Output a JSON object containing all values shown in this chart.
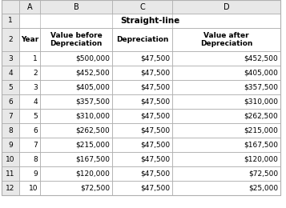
{
  "title": "Straight-line",
  "col_headers": [
    "",
    "A",
    "B",
    "C",
    "D"
  ],
  "header2": [
    "Year",
    "Value before\nDepreciation",
    "Depreciation",
    "Value after\nDepreciation"
  ],
  "years": [
    "1",
    "2",
    "3",
    "4",
    "5",
    "6",
    "7",
    "8",
    "9",
    "10"
  ],
  "value_before": [
    "$500,000",
    "$452,500",
    "$405,000",
    "$357,500",
    "$310,000",
    "$262,500",
    "$215,000",
    "$167,500",
    "$120,000",
    "$72,500"
  ],
  "depreciation": [
    "$47,500",
    "$47,500",
    "$47,500",
    "$47,500",
    "$47,500",
    "$47,500",
    "$47,500",
    "$47,500",
    "$47,500",
    "$47,500"
  ],
  "value_after": [
    "$452,500",
    "$405,000",
    "$357,500",
    "$310,000",
    "$262,500",
    "$215,000",
    "$167,500",
    "$120,000",
    "$72,500",
    "$25,000"
  ],
  "row_numbers": [
    "1",
    "2",
    "3",
    "4",
    "5",
    "6",
    "7",
    "8",
    "9",
    "10",
    "11",
    "12"
  ],
  "row_bg": "#ffffff",
  "grid_color": "#b0b0b0",
  "row_num_bg": "#e8e8e8",
  "col_hdr_bg": "#e8e8e8",
  "title_fontsize": 7.5,
  "header_fontsize": 6.5,
  "data_fontsize": 6.5,
  "col_hdr_fontsize": 7.0
}
